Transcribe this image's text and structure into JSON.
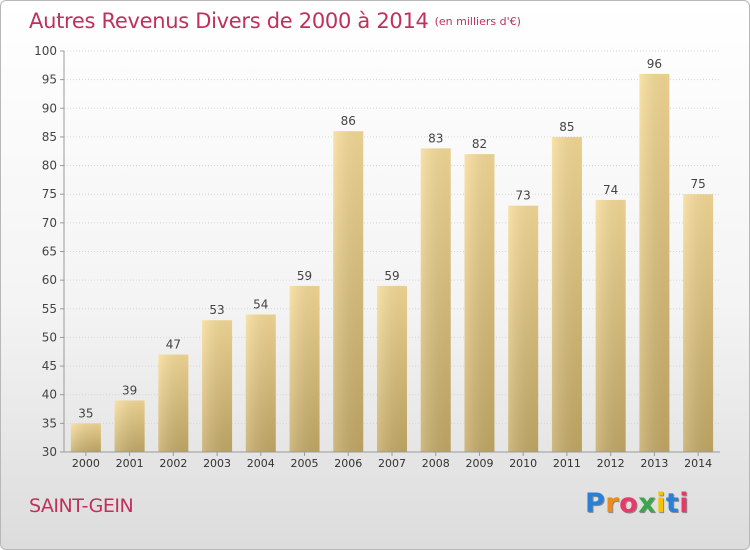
{
  "header": {
    "title": "Autres Revenus Divers de 2000 à 2014",
    "unit": "(en milliers d'€)"
  },
  "location": "SAINT-GEIN",
  "logo": {
    "text": "Proxiti",
    "letter_colors": [
      "#2b7fd4",
      "#f08a1c",
      "#e83a6a",
      "#3aa84a",
      "#f5c400",
      "#2b7fd4",
      "#e83a6a"
    ]
  },
  "colors": {
    "title": "#c0305a",
    "bar_top": "#f7dc98",
    "bar_bottom": "#c4aa66"
  },
  "chart_data": {
    "type": "bar",
    "title": "Autres Revenus Divers de 2000 à 2014",
    "subtitle": "(en milliers d'€)",
    "xlabel": "",
    "ylabel": "",
    "categories": [
      "2000",
      "2001",
      "2002",
      "2003",
      "2004",
      "2005",
      "2006",
      "2007",
      "2008",
      "2009",
      "2010",
      "2011",
      "2012",
      "2013",
      "2014"
    ],
    "values": [
      35,
      39,
      47,
      53,
      54,
      59,
      86,
      59,
      83,
      82,
      73,
      85,
      74,
      96,
      75
    ],
    "ylim": [
      30,
      100
    ],
    "yticks": [
      30,
      35,
      40,
      45,
      50,
      55,
      60,
      65,
      70,
      75,
      80,
      85,
      90,
      95,
      100
    ],
    "grid": true,
    "data_labels": true
  }
}
